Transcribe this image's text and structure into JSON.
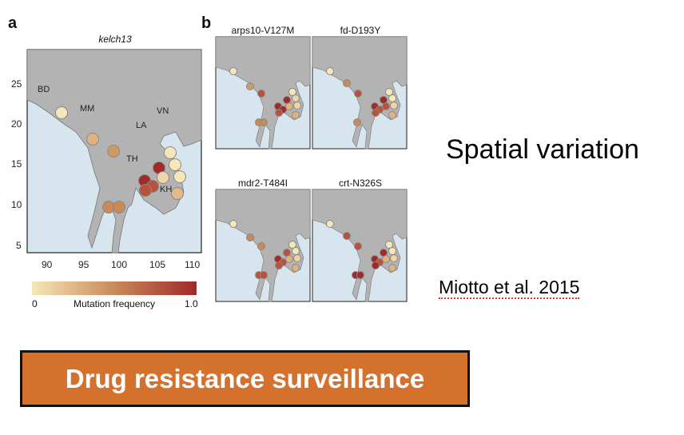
{
  "panel_a_label": "a",
  "panel_b_label": "b",
  "panel_a": {
    "title": "kelch13",
    "y_ticks": [
      25,
      20,
      15,
      10,
      5
    ],
    "x_ticks": [
      90,
      95,
      100,
      105,
      110
    ],
    "regions": [
      "BD",
      "MM",
      "LA",
      "VN",
      "TH",
      "KH"
    ]
  },
  "colorbar": {
    "min_label": "0",
    "max_label": "1.0",
    "label": "Mutation frequency",
    "color_low": "#f6e7b8",
    "color_mid": "#c98a5a",
    "color_high": "#a1282b"
  },
  "small_maps": [
    "arps10-V127M",
    "fd-D193Y",
    "mdr2-T484I",
    "crt-N326S"
  ],
  "colors": {
    "land": "#b3b3b3",
    "sea": "#d7e6ee",
    "banner": "#d4722d"
  },
  "headline": "Spatial variation",
  "citation": "Miotto et al. 2015",
  "banner_text": "Drug resistance surveillance"
}
